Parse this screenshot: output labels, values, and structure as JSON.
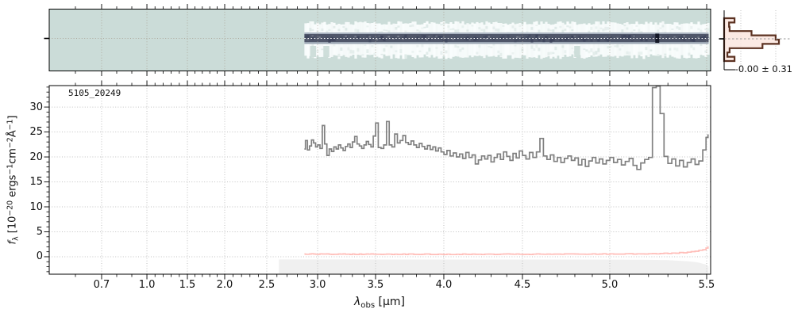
{
  "figure": {
    "background": "#ffffff"
  },
  "chart_data": [
    {
      "id": "spec2d",
      "type": "heatmap",
      "description": "2D spectrum cutout: horizontal source trace on teal background",
      "colors": {
        "background": "#cbdcd8",
        "band": "#fafdfd",
        "trace_soft": "#a9b3c0",
        "trace_lower": "#9aa5b2",
        "trace_core": "#4f5669",
        "trace_dark": "#353c55",
        "spot": "#141827",
        "grid": "#a89e90",
        "center_line": "#ffffff"
      },
      "band": {
        "lambda_start": 2.87,
        "lambda_end": 5.53
      },
      "emission_spot_lambda": 5.245,
      "intrusions": [
        {
          "lambda": 2.95
        },
        {
          "lambda": 3.07
        },
        {
          "lambda": 4.81
        }
      ]
    },
    {
      "id": "spec1d",
      "type": "line",
      "title": "5105_20249",
      "xlabel_parts": [
        {
          "t": "λ",
          "s": "i"
        },
        {
          "t": "obs",
          "s": "sub"
        },
        {
          "t": " [μm]",
          "s": ""
        }
      ],
      "ylabel_parts": [
        {
          "t": "f",
          "s": "i"
        },
        {
          "t": "λ",
          "s": "sub"
        },
        {
          "t": " [10",
          "s": ""
        },
        {
          "t": "−20",
          "s": "sup"
        },
        {
          "t": " ergs",
          "s": ""
        },
        {
          "t": "−1",
          "s": "sup"
        },
        {
          "t": "cm",
          "s": ""
        },
        {
          "t": "−2",
          "s": "sup"
        },
        {
          "t": "Å",
          "s": ""
        },
        {
          "t": "−1",
          "s": "sup"
        },
        {
          "t": "]",
          "s": ""
        }
      ],
      "x_ticks": [
        0.7,
        1.0,
        1.5,
        2.0,
        2.5,
        3.0,
        3.5,
        4.0,
        4.5,
        5.0,
        5.5
      ],
      "x_tick_labels": [
        "0.7",
        "1.0",
        "1.5",
        "2.0",
        "2.5",
        "3.0",
        "3.5",
        "4.0",
        "4.5",
        "5.0",
        "5.5"
      ],
      "y_ticks": [
        0,
        5,
        10,
        15,
        20,
        25,
        30
      ],
      "y_tick_labels": [
        "0",
        "5",
        "10",
        "15",
        "20",
        "25",
        "30"
      ],
      "ylim": [
        -3.5,
        34.3
      ],
      "grid": true,
      "x_axis_mapping": [
        [
          0.5,
          0.0
        ],
        [
          0.7,
          0.0792
        ],
        [
          1.0,
          0.1477
        ],
        [
          1.5,
          0.2089
        ],
        [
          2.0,
          0.2653
        ],
        [
          2.5,
          0.3289
        ],
        [
          3.0,
          0.4058
        ],
        [
          3.5,
          0.4934
        ],
        [
          4.0,
          0.5966
        ],
        [
          4.5,
          0.7155
        ],
        [
          5.0,
          0.8475
        ],
        [
          5.5,
          0.994
        ],
        [
          5.56,
          1.0
        ]
      ],
      "series": [
        {
          "name": "flux",
          "color": "#808080",
          "style": "steps-mid",
          "lambda_start": 2.87,
          "lambda_step": 0.02,
          "values": [
            21.6,
            23.3,
            21.4,
            22.2,
            23.4,
            22.8,
            22.0,
            22.4,
            21.7,
            26.3,
            22.6,
            20.3,
            21.6,
            21.1,
            22.0,
            21.6,
            22.4,
            21.8,
            21.3,
            22.1,
            22.6,
            21.9,
            23.0,
            24.1,
            22.6,
            22.2,
            21.7,
            22.4,
            23.1,
            22.5,
            22.0,
            24.2,
            26.8,
            21.9,
            21.7,
            22.4,
            27.1,
            22.4,
            22.0,
            24.6,
            22.8,
            23.3,
            24.3,
            22.9,
            22.5,
            23.2,
            22.4,
            21.9,
            22.7,
            22.1,
            21.6,
            22.3,
            21.5,
            22.0,
            21.2,
            21.8,
            21.0,
            20.5,
            21.3,
            20.2,
            20.8,
            20.0,
            20.6,
            19.7,
            20.9,
            19.9,
            20.4,
            18.6,
            19.4,
            20.2,
            19.6,
            20.3,
            19.0,
            19.9,
            20.6,
            19.5,
            21.0,
            20.1,
            19.3,
            20.7,
            19.8,
            21.2,
            20.3,
            19.6,
            20.9,
            19.9,
            21.0,
            23.7,
            20.2,
            19.5,
            20.4,
            19.1,
            19.9,
            18.9,
            19.7,
            20.2,
            19.3,
            19.8,
            18.4,
            19.5,
            18.1,
            19.2,
            19.9,
            18.8,
            19.6,
            18.6,
            19.3,
            19.9,
            18.9,
            19.5,
            18.4,
            19.1,
            19.7,
            18.3,
            17.5,
            18.8,
            19.5,
            19.9,
            33.9,
            34.2,
            28.7,
            20.1,
            18.7,
            19.6,
            18.2,
            19.3,
            18.0,
            18.9,
            19.6,
            18.5,
            19.2,
            21.4,
            23.9,
            24.4
          ]
        },
        {
          "name": "error",
          "color": "#ffbdb8",
          "style": "steps-mid",
          "points": [
            [
              2.87,
              0.55
            ],
            [
              3.2,
              0.5
            ],
            [
              3.6,
              0.52
            ],
            [
              4.0,
              0.48
            ],
            [
              4.4,
              0.5
            ],
            [
              4.8,
              0.52
            ],
            [
              5.0,
              0.55
            ],
            [
              5.2,
              0.6
            ],
            [
              5.3,
              0.65
            ],
            [
              5.4,
              0.85
            ],
            [
              5.45,
              1.05
            ],
            [
              5.5,
              1.55
            ],
            [
              5.53,
              1.95
            ]
          ]
        }
      ],
      "shaded_region": {
        "color": "#f0f0f0",
        "top_points": [
          [
            2.62,
            -0.55
          ],
          [
            5.0,
            -0.58
          ],
          [
            5.2,
            -0.62
          ],
          [
            5.3,
            -0.68
          ],
          [
            5.4,
            -0.9
          ],
          [
            5.45,
            -1.1
          ],
          [
            5.5,
            -1.6
          ],
          [
            5.53,
            -2.0
          ]
        ]
      }
    },
    {
      "id": "noise_hist",
      "type": "histogram",
      "orientation": "horizontal",
      "label": "-0.00 ± 0.31",
      "bin_fractions": [
        0.19,
        0.09,
        0.1,
        0.5,
        0.94,
        1.0,
        0.7,
        0.1,
        0.06,
        0.19
      ],
      "line_color": "#5c3222",
      "fill_color": "#fbe5dd"
    }
  ]
}
